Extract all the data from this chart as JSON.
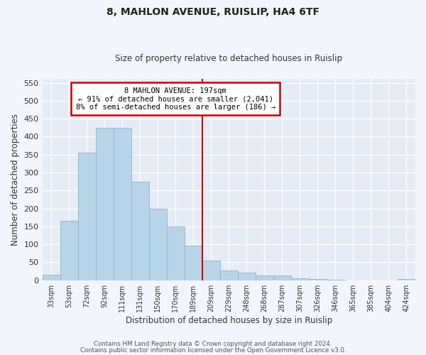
{
  "title": "8, MAHLON AVENUE, RUISLIP, HA4 6TF",
  "subtitle": "Size of property relative to detached houses in Ruislip",
  "xlabel": "Distribution of detached houses by size in Ruislip",
  "ylabel": "Number of detached properties",
  "bar_labels": [
    "33sqm",
    "53sqm",
    "72sqm",
    "92sqm",
    "111sqm",
    "131sqm",
    "150sqm",
    "170sqm",
    "189sqm",
    "209sqm",
    "229sqm",
    "248sqm",
    "268sqm",
    "287sqm",
    "307sqm",
    "326sqm",
    "346sqm",
    "365sqm",
    "385sqm",
    "404sqm",
    "424sqm"
  ],
  "bar_heights": [
    15,
    165,
    355,
    425,
    425,
    275,
    200,
    150,
    97,
    55,
    28,
    22,
    14,
    13,
    5,
    3,
    1,
    0,
    0,
    0,
    3
  ],
  "bar_color": "#b8d4e8",
  "bar_edge_color": "#8ab4d0",
  "vline_color": "#cc0000",
  "annotation_title": "8 MAHLON AVENUE: 197sqm",
  "annotation_line1": "← 91% of detached houses are smaller (2,041)",
  "annotation_line2": "8% of semi-detached houses are larger (186) →",
  "annotation_box_color": "#ffffff",
  "annotation_box_edge": "#cc0000",
  "ylim": [
    0,
    560
  ],
  "yticks": [
    0,
    50,
    100,
    150,
    200,
    250,
    300,
    350,
    400,
    450,
    500,
    550
  ],
  "footer1": "Contains HM Land Registry data © Crown copyright and database right 2024.",
  "footer2": "Contains public sector information licensed under the Open Government Licence v3.0.",
  "bg_color": "#f2f5fb",
  "plot_bg_color": "#e6ecf5"
}
